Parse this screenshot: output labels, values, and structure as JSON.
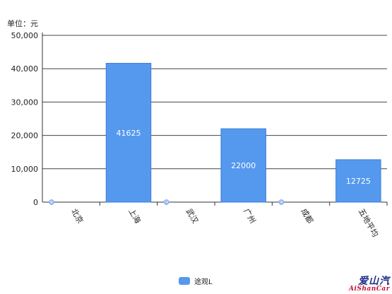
{
  "unit_label": "单位：元",
  "legend": {
    "label": "途观L",
    "color": "#5599ee"
  },
  "watermark": {
    "line1": "爱山汽",
    "line2": "AiShanCar"
  },
  "chart_data": {
    "type": "bar",
    "categories": [
      "北京",
      "上海",
      "武汉",
      "广州",
      "成都",
      "五地平均"
    ],
    "series": [
      {
        "name": "途观L",
        "values": [
          0,
          41625,
          0,
          22000,
          0,
          12725
        ]
      }
    ],
    "data_labels": [
      "0",
      "41625",
      "0",
      "22000",
      "0",
      "12725"
    ],
    "y_ticks": [
      "0",
      "10,000",
      "20,000",
      "30,000",
      "40,000",
      "50,000"
    ],
    "ylim": [
      0,
      50000
    ],
    "grid": true,
    "legend_position": "bottom",
    "bar_color": "#5599ee"
  }
}
